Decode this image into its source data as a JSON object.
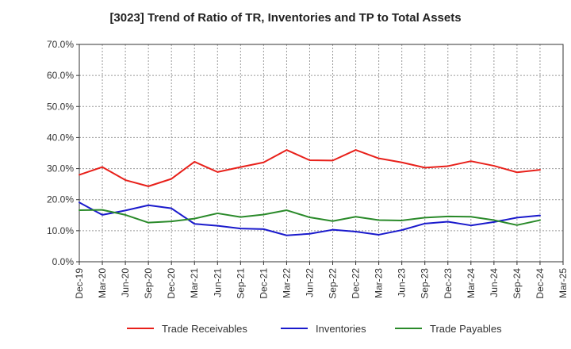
{
  "chart_data": {
    "type": "line",
    "title": "[3023]  Trend of Ratio of TR, Inventories and TP to Total Assets",
    "xlabel": "",
    "ylabel": "",
    "ylim": [
      0,
      70
    ],
    "yticks": [
      "0.0%",
      "10.0%",
      "20.0%",
      "30.0%",
      "40.0%",
      "50.0%",
      "60.0%",
      "70.0%"
    ],
    "x_tick_labels": [
      "Dec-19",
      "Mar-20",
      "Jun-20",
      "Sep-20",
      "Dec-20",
      "Mar-21",
      "Jun-21",
      "Sep-21",
      "Dec-21",
      "Mar-22",
      "Jun-22",
      "Sep-22",
      "Dec-22",
      "Mar-23",
      "Jun-23",
      "Sep-23",
      "Dec-23",
      "Mar-24",
      "Jun-24",
      "Sep-24",
      "Dec-24",
      "Mar-25"
    ],
    "categories": [
      "Dec-19",
      "Mar-20",
      "Jun-20",
      "Sep-20",
      "Dec-20",
      "Mar-21",
      "Jun-21",
      "Sep-21",
      "Dec-21",
      "Mar-22",
      "Jun-22",
      "Sep-22",
      "Dec-22",
      "Mar-23",
      "Jun-23",
      "Sep-23",
      "Dec-23",
      "Mar-24",
      "Jun-24",
      "Sep-24",
      "Dec-24"
    ],
    "grid": true,
    "legend_position": "bottom",
    "series": [
      {
        "name": "Trade Receivables",
        "color": "#e8201a",
        "values": [
          28.0,
          30.5,
          26.3,
          24.3,
          26.7,
          32.2,
          28.9,
          30.5,
          32.0,
          36.0,
          32.7,
          32.6,
          36.0,
          33.3,
          32.0,
          30.3,
          30.8,
          32.4,
          30.9,
          28.8,
          29.6
        ]
      },
      {
        "name": "Inventories",
        "color": "#1a1acc",
        "values": [
          19.1,
          15.1,
          16.5,
          18.2,
          17.2,
          12.2,
          11.6,
          10.7,
          10.5,
          8.5,
          9.0,
          10.3,
          9.7,
          8.7,
          10.2,
          12.3,
          12.9,
          11.7,
          12.8,
          14.2,
          14.9
        ]
      },
      {
        "name": "Trade Payables",
        "color": "#2a8a2a",
        "values": [
          16.6,
          16.7,
          15.1,
          12.6,
          13.0,
          13.9,
          15.6,
          14.4,
          15.2,
          16.6,
          14.3,
          13.1,
          14.5,
          13.4,
          13.3,
          14.2,
          14.6,
          14.5,
          13.4,
          11.8,
          13.4
        ]
      }
    ]
  }
}
